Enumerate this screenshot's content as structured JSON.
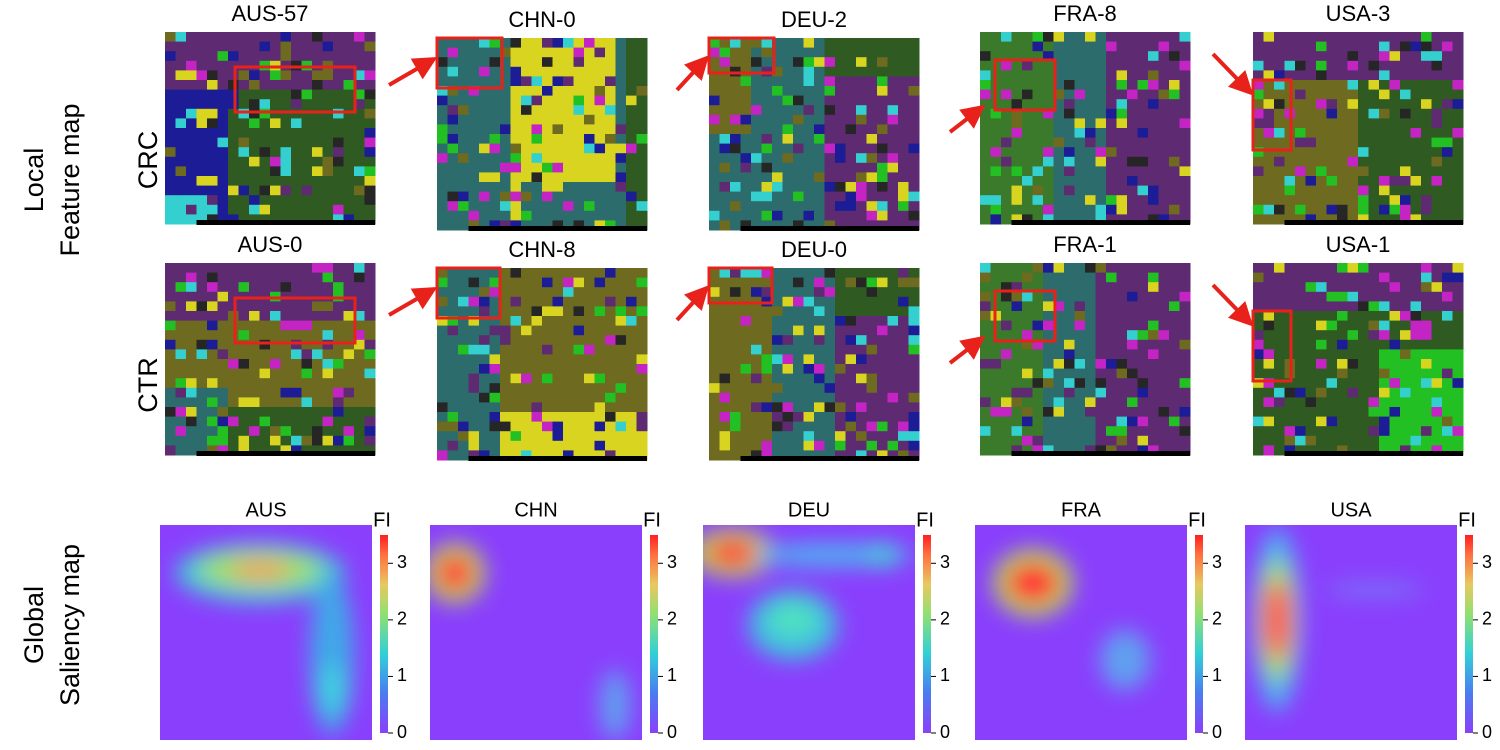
{
  "local": {
    "label_lines": [
      "Local",
      "Feature map"
    ],
    "rows": [
      {
        "label": "CRC",
        "panels": [
          "AUS-57",
          "CHN-0",
          "DEU-2",
          "FRA-8",
          "USA-3"
        ]
      },
      {
        "label": "CTR",
        "panels": [
          "AUS-0",
          "CHN-8",
          "DEU-0",
          "FRA-1",
          "USA-1"
        ]
      }
    ]
  },
  "global": {
    "label_lines": [
      "Global",
      "Saliency map"
    ],
    "panels": [
      "AUS",
      "CHN",
      "DEU",
      "FRA",
      "USA"
    ],
    "colorbar": {
      "label": "FI",
      "range": [
        0,
        3.5
      ],
      "ticks": [
        0,
        1,
        2,
        3
      ]
    }
  }
}
